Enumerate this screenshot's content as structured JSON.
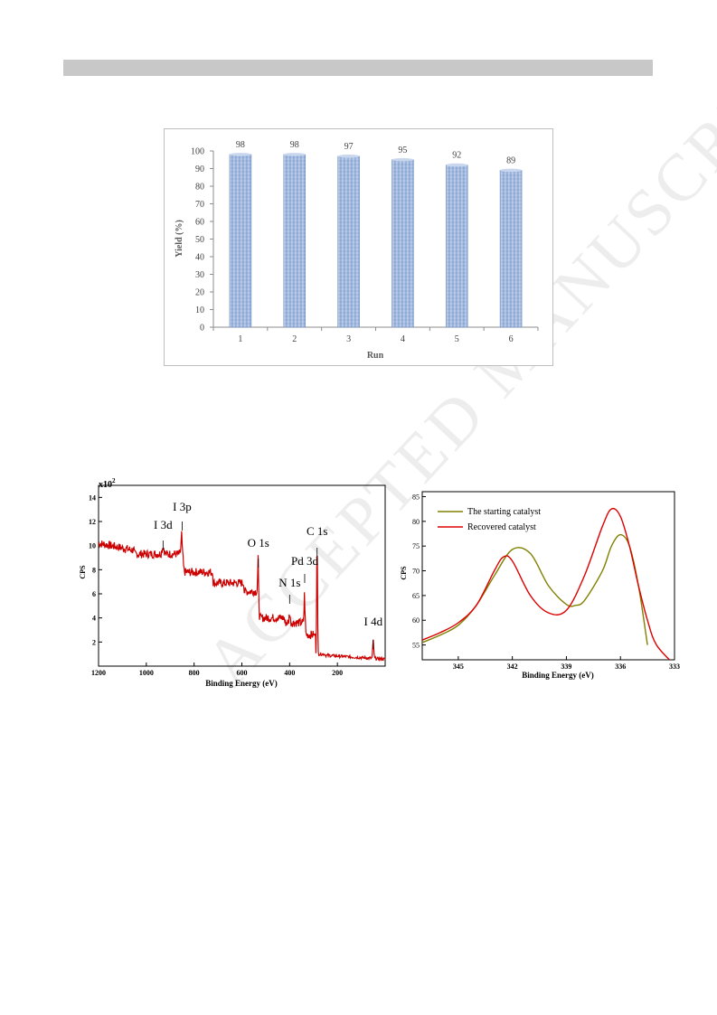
{
  "watermark": "ACCEPTED MANUSCRIPT",
  "chart_data": [
    {
      "type": "bar",
      "categories": [
        "1",
        "2",
        "3",
        "4",
        "5",
        "6"
      ],
      "values": [
        98,
        98,
        97,
        95,
        92,
        89
      ],
      "data_labels": [
        "98",
        "98",
        "97",
        "95",
        "92",
        "89"
      ],
      "xlabel": "Run",
      "ylabel": "Yield (%)",
      "ylim": [
        0,
        100
      ],
      "yticks": [
        "0",
        "10",
        "20",
        "30",
        "40",
        "50",
        "60",
        "70",
        "80",
        "90",
        "100"
      ],
      "grid": false,
      "bar_color": "#9db6d9"
    },
    {
      "type": "line",
      "xlabel": "Binding Energy (eV)",
      "ylabel": "CPS",
      "y_multiplier": "x10",
      "y_multiplier_exp": "2",
      "xlim": [
        1200,
        0
      ],
      "ylim": [
        0,
        15
      ],
      "xticks": [
        "1200",
        "1000",
        "800",
        "600",
        "400",
        "200"
      ],
      "yticks": [
        "2",
        "4",
        "6",
        "8",
        "10",
        "12",
        "14"
      ],
      "line_color": "#cc0000",
      "annotations": [
        {
          "label": "I 3d",
          "x": 930
        },
        {
          "label": "I 3p",
          "x": 850
        },
        {
          "label": "O 1s",
          "x": 531
        },
        {
          "label": "N 1s",
          "x": 400
        },
        {
          "label": "Pd 3d",
          "x": 337
        },
        {
          "label": "C 1s",
          "x": 285
        },
        {
          "label": "I 4d",
          "x": 50
        }
      ]
    },
    {
      "type": "line",
      "xlabel": "Binding Energy (eV)",
      "ylabel": "CPS",
      "xlim": [
        347,
        333
      ],
      "ylim": [
        52,
        86
      ],
      "xticks": [
        "345",
        "342",
        "339",
        "336",
        "333"
      ],
      "yticks": [
        "55",
        "60",
        "65",
        "70",
        "75",
        "80",
        "85"
      ],
      "legend_position": "top-left",
      "series": [
        {
          "name": "The starting catalyst",
          "color": "#808000",
          "x": [
            347,
            346,
            345,
            344,
            343,
            342,
            341,
            340,
            339,
            338.5,
            338,
            337,
            336.5,
            336,
            335.5,
            335,
            334.5
          ],
          "y": [
            55.5,
            57,
            59,
            63,
            69,
            74.3,
            73.5,
            67,
            63.2,
            63,
            64,
            70,
            75,
            77.3,
            75,
            67,
            55
          ]
        },
        {
          "name": "Recovered catalyst",
          "color": "#dd0000",
          "x": [
            347,
            346,
            345,
            344,
            343,
            342.5,
            342,
            341,
            340,
            339,
            338,
            337,
            336.5,
            336,
            335.5,
            335,
            334.5,
            334,
            333
          ],
          "y": [
            56,
            57.5,
            59.5,
            63,
            70,
            72.8,
            72,
            65,
            61.5,
            62,
            69,
            79,
            82.5,
            81,
            75,
            67,
            60,
            55,
            51
          ]
        }
      ]
    }
  ]
}
